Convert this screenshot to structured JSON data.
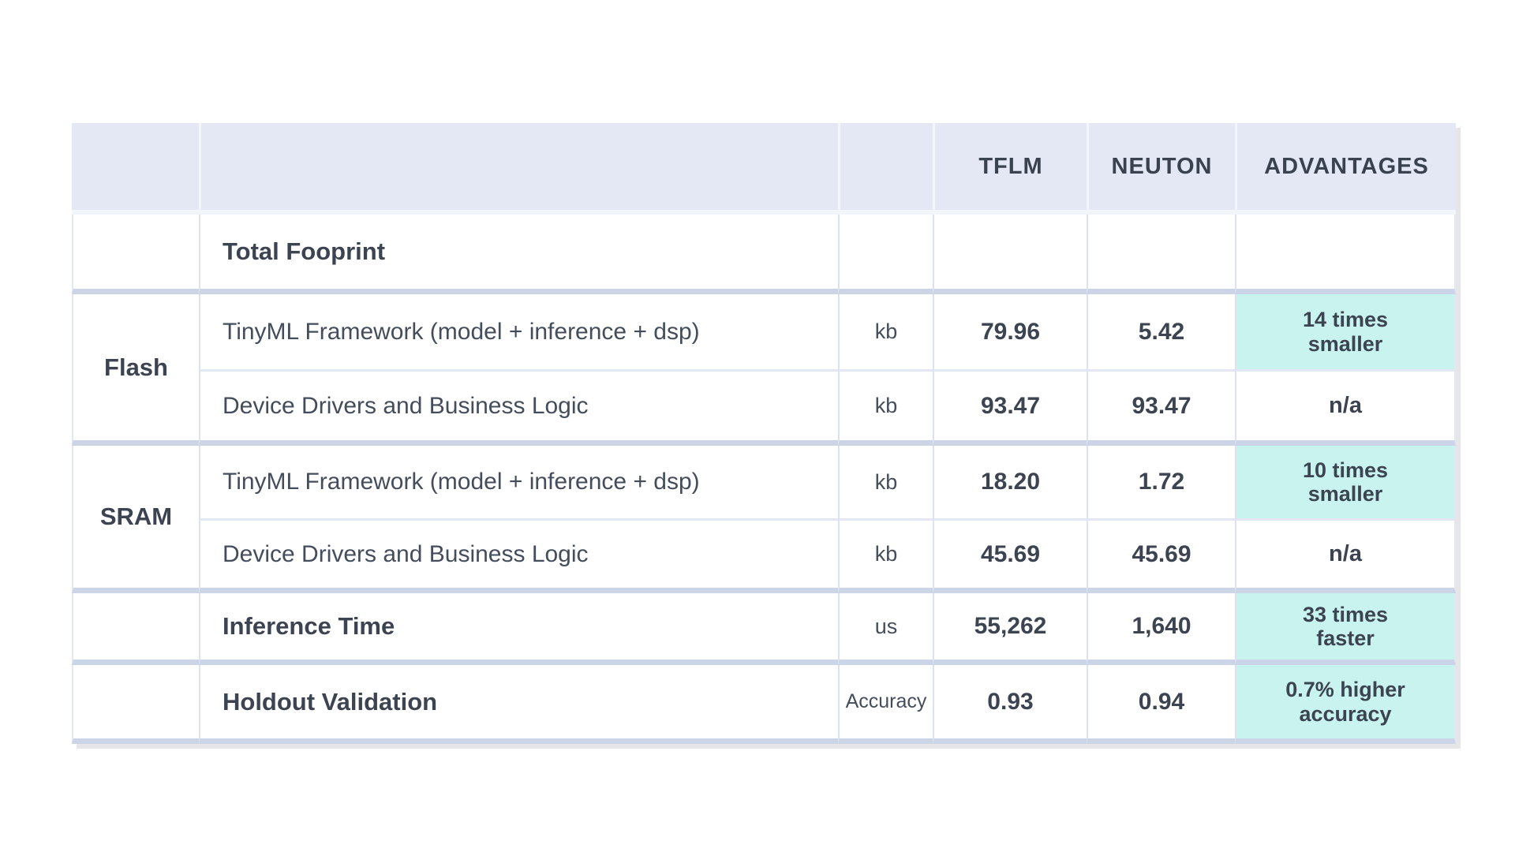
{
  "colors": {
    "header_bg": "#e3e8f4",
    "highlight_bg": "#c8f3ee",
    "text_dark": "#3c4452",
    "grid_thin": "#dce2ef",
    "grid_band": "#ccd4e8",
    "shadow": "#e6e6e9"
  },
  "table": {
    "header": {
      "tflm": "TFLM",
      "neuton": "NEUTON",
      "advantages": "ADVANTAGES"
    },
    "groups": {
      "flash": "Flash",
      "sram": "SRAM"
    },
    "rows": {
      "total": {
        "label": "Total Fooprint"
      },
      "flash_fw": {
        "desc": "TinyML Framework (model + inference + dsp)",
        "unit": "kb",
        "tflm": "79.96",
        "neuton": "5.42",
        "adv": [
          "14 times",
          "smaller"
        ]
      },
      "flash_dd": {
        "desc": "Device Drivers and Business Logic",
        "unit": "kb",
        "tflm": "93.47",
        "neuton": "93.47",
        "adv": [
          "n/a"
        ]
      },
      "sram_fw": {
        "desc": "TinyML Framework (model + inference + dsp)",
        "unit": "kb",
        "tflm": "18.20",
        "neuton": "1.72",
        "adv": [
          "10 times",
          "smaller"
        ]
      },
      "sram_dd": {
        "desc": "Device Drivers and Business Logic",
        "unit": "kb",
        "tflm": "45.69",
        "neuton": "45.69",
        "adv": [
          "n/a"
        ]
      },
      "inference": {
        "label": "Inference Time",
        "unit": "us",
        "tflm": "55,262",
        "neuton": "1,640",
        "adv": [
          "33 times",
          "faster"
        ]
      },
      "holdout": {
        "label": "Holdout Validation",
        "unit": "Accuracy",
        "tflm": "0.93",
        "neuton": "0.94",
        "adv": [
          "0.7% higher",
          "accuracy"
        ]
      }
    }
  },
  "chart_data": {
    "type": "table",
    "columns": [
      "",
      "",
      "",
      "TFLM",
      "NEUTON",
      "ADVANTAGES"
    ],
    "rows": [
      [
        "",
        "Total Fooprint",
        "",
        "",
        "",
        ""
      ],
      [
        "Flash",
        "TinyML Framework (model + inference + dsp)",
        "kb",
        "79.96",
        "5.42",
        "14 times smaller"
      ],
      [
        "Flash",
        "Device Drivers and Business Logic",
        "kb",
        "93.47",
        "93.47",
        "n/a"
      ],
      [
        "SRAM",
        "TinyML Framework (model + inference + dsp)",
        "kb",
        "18.20",
        "1.72",
        "10 times smaller"
      ],
      [
        "SRAM",
        "Device Drivers and Business Logic",
        "kb",
        "45.69",
        "45.69",
        "n/a"
      ],
      [
        "",
        "Inference Time",
        "us",
        "55,262",
        "1,640",
        "33 times faster"
      ],
      [
        "",
        "Holdout Validation",
        "Accuracy",
        "0.93",
        "0.94",
        "0.7% higher accuracy"
      ]
    ],
    "notes": {
      "highlighted_advantage_cells": [
        "14 times smaller",
        "10 times smaller",
        "33 times faster",
        "0.7% higher accuracy"
      ],
      "row_group_spans": {
        "Flash": 2,
        "SRAM": 2
      }
    }
  }
}
